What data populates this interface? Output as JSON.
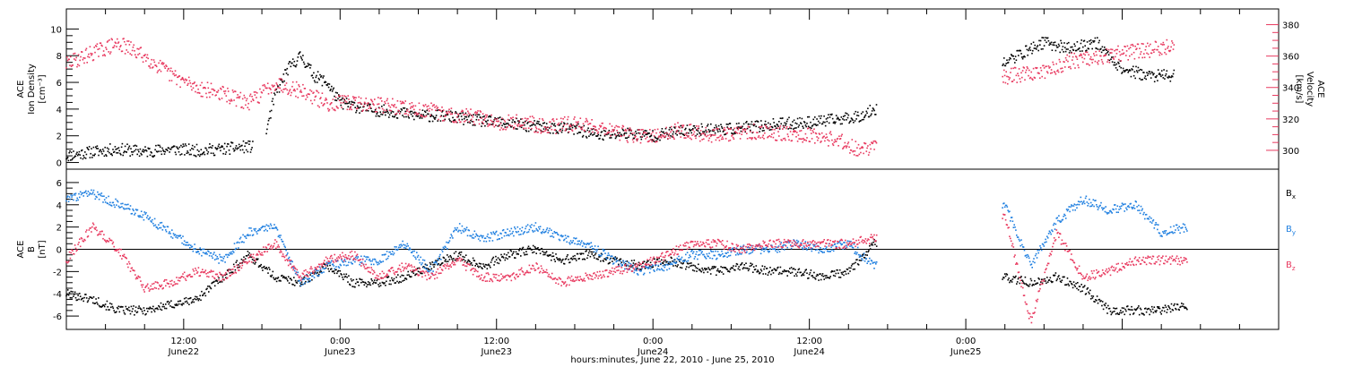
{
  "colors": {
    "black": "#000000",
    "pink": "#e8395f",
    "blue": "#1f7fe0"
  },
  "chart_data": [
    {
      "type": "scatter",
      "panel": "top",
      "ylabel_lines": [
        "ACE",
        "Ion Density",
        "[cm⁻³]"
      ],
      "ylim": [
        -0.5,
        11.5
      ],
      "yticks": [
        0,
        2,
        4,
        6,
        8,
        10
      ],
      "y2label_lines": [
        "ACE",
        "Velocity",
        "[km/s]"
      ],
      "y2lim": [
        288,
        390
      ],
      "y2ticks": [
        300,
        320,
        340,
        360,
        380
      ],
      "xlim_hours": [
        -9,
        84
      ],
      "series": [
        {
          "name": "Ion Density",
          "axis": "left",
          "color": "#000000",
          "hours": [
            -9,
            -7,
            -5,
            -3,
            -1,
            1,
            3,
            5,
            6,
            7,
            8,
            9,
            10,
            11,
            12,
            14,
            16,
            18,
            20,
            22,
            24,
            26,
            28,
            30,
            32,
            34,
            36,
            38,
            40,
            42,
            44,
            46,
            48,
            50,
            52,
            53,
            63,
            64,
            65,
            66,
            68,
            70,
            72,
            74,
            76
          ],
          "values": [
            0.5,
            0.8,
            1.0,
            0.8,
            1.0,
            0.9,
            1.0,
            1.2,
            1.0,
            5.0,
            7.0,
            8.0,
            6.5,
            6.0,
            4.5,
            4.0,
            3.8,
            3.5,
            3.5,
            3.2,
            3.0,
            2.8,
            2.6,
            2.5,
            2.0,
            2.2,
            2.0,
            2.3,
            2.5,
            2.5,
            2.7,
            2.9,
            3.0,
            3.2,
            3.5,
            4.0,
            7.5,
            8.0,
            8.5,
            9.0,
            8.5,
            9.0,
            7.0,
            6.5,
            6.5
          ]
        },
        {
          "name": "Velocity",
          "axis": "right",
          "color": "#e8395f",
          "hours": [
            -9,
            -7,
            -5,
            -3,
            -1,
            1,
            3,
            5,
            7,
            9,
            11,
            13,
            15,
            17,
            19,
            20,
            22,
            24,
            26,
            28,
            30,
            32,
            34,
            36,
            38,
            40,
            42,
            44,
            46,
            48,
            50,
            52,
            53,
            63,
            64,
            66,
            68,
            70,
            72,
            74,
            76
          ],
          "values": [
            355,
            362,
            368,
            360,
            348,
            340,
            336,
            330,
            343,
            338,
            330,
            330,
            329,
            327,
            325,
            323,
            322,
            318,
            318,
            315,
            317,
            315,
            310,
            308,
            313,
            310,
            310,
            312,
            311,
            310,
            307,
            300,
            302,
            347,
            348,
            350,
            357,
            358,
            362,
            364,
            366
          ]
        }
      ]
    },
    {
      "type": "scatter",
      "panel": "bottom",
      "ylabel_lines": [
        "ACE",
        "B",
        "[nT]"
      ],
      "ylim": [
        -7.2,
        7.2
      ],
      "yticks": [
        -6,
        -4,
        -2,
        0,
        2,
        4,
        6
      ],
      "xlim_hours": [
        -9,
        84
      ],
      "x_tick_labels": [
        {
          "hour": 0,
          "time": "12:00",
          "date": "June22"
        },
        {
          "hour": 12,
          "time": "0:00",
          "date": "June23"
        },
        {
          "hour": 24,
          "time": "12:00",
          "date": "June23"
        },
        {
          "hour": 36,
          "time": "0:00",
          "date": "June24"
        },
        {
          "hour": 48,
          "time": "12:00",
          "date": "June24"
        },
        {
          "hour": 60,
          "time": "0:00",
          "date": "June25"
        }
      ],
      "xlabel": "hours:minutes, June 22, 2010 - June 25, 2010",
      "series": [
        {
          "name": "Bx",
          "label_main": "B",
          "label_sub": "x",
          "color": "#000000",
          "hours": [
            -9,
            -7,
            -5,
            -3,
            -1,
            1,
            3,
            5,
            7,
            9,
            11,
            13,
            15,
            17,
            19,
            21,
            23,
            25,
            27,
            29,
            31,
            33,
            35,
            37,
            39,
            41,
            43,
            45,
            47,
            49,
            51,
            53,
            63,
            65,
            67,
            69,
            71,
            73,
            75,
            77
          ],
          "values": [
            -4.0,
            -4.5,
            -5.5,
            -5.5,
            -5.0,
            -4.5,
            -2.5,
            -0.5,
            -2.5,
            -3.0,
            -1.5,
            -3.0,
            -3.0,
            -2.5,
            -1.5,
            -0.5,
            -1.5,
            -0.5,
            0.0,
            -1.0,
            -0.5,
            -1.0,
            -1.5,
            -1.0,
            -1.5,
            -2.0,
            -1.5,
            -2.0,
            -2.0,
            -2.5,
            -2.0,
            0.5,
            -2.5,
            -3.0,
            -2.5,
            -3.5,
            -5.5,
            -5.5,
            -5.5,
            -5.0
          ]
        },
        {
          "name": "By",
          "label_main": "B",
          "label_sub": "y",
          "color": "#1f7fe0",
          "hours": [
            -9,
            -7,
            -5,
            -3,
            -1,
            1,
            3,
            5,
            7,
            9,
            11,
            13,
            15,
            17,
            19,
            21,
            23,
            25,
            27,
            29,
            31,
            33,
            35,
            37,
            39,
            41,
            43,
            45,
            47,
            49,
            51,
            53,
            63,
            65,
            67,
            69,
            71,
            73,
            75,
            77
          ],
          "values": [
            4.5,
            5.0,
            4.0,
            3.0,
            1.5,
            0.0,
            -1.0,
            1.5,
            2.0,
            -3.0,
            -1.5,
            -1.0,
            -1.0,
            0.5,
            -2.0,
            2.0,
            1.0,
            1.5,
            2.0,
            1.0,
            0.5,
            -1.0,
            -2.0,
            -1.5,
            -0.5,
            -0.5,
            0.0,
            0.0,
            0.5,
            0.0,
            0.5,
            -1.5,
            4.0,
            -1.5,
            2.5,
            4.5,
            3.5,
            4.0,
            1.5,
            2.0
          ]
        },
        {
          "name": "Bz",
          "label_main": "B",
          "label_sub": "z",
          "color": "#e8395f",
          "hours": [
            -9,
            -7,
            -5,
            -3,
            -1,
            1,
            3,
            5,
            7,
            9,
            11,
            13,
            15,
            17,
            19,
            21,
            23,
            25,
            27,
            29,
            31,
            33,
            35,
            37,
            39,
            41,
            43,
            45,
            47,
            49,
            51,
            53,
            63,
            65,
            67,
            69,
            71,
            73,
            75,
            77
          ],
          "values": [
            -1.0,
            2.0,
            0.0,
            -3.5,
            -3.0,
            -2.0,
            -2.5,
            -1.0,
            0.5,
            -2.5,
            -1.0,
            -0.5,
            -2.5,
            -1.5,
            -2.5,
            -1.0,
            -2.5,
            -2.5,
            -1.5,
            -3.0,
            -2.5,
            -2.0,
            -1.5,
            -0.5,
            0.5,
            0.5,
            0.0,
            0.5,
            0.5,
            0.5,
            0.5,
            1.0,
            3.0,
            -6.5,
            1.5,
            -2.5,
            -2.0,
            -1.0,
            -1.0,
            -1.0
          ]
        }
      ]
    }
  ]
}
